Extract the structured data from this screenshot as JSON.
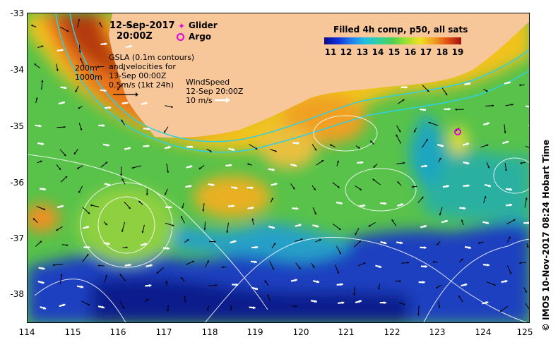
{
  "map": {
    "date": "12-Sep-2017",
    "time": "20:00Z",
    "legend_glider": "Glider",
    "legend_argo": "Argo",
    "gsla_note": "GSLA (0.1m contours)\nand velocities for\n13-Sep 00:00Z\n0.5m/s (1kt 24h)",
    "depth_200": "200m",
    "depth_1000": "1000m",
    "wind_note": "WindSpeed\n12-Sep 20:00Z\n10 m/s",
    "colorbar_title": "Filled 4h comp, p50, all sats",
    "colorbar_ticks": [
      "11",
      "12",
      "13",
      "14",
      "15",
      "16",
      "17",
      "18",
      "19"
    ],
    "credit": "© IMOS 10-Nov-2017 08:24 Hobart Time",
    "x_ticks": [
      "114",
      "115",
      "116",
      "117",
      "118",
      "119",
      "120",
      "121",
      "122",
      "123",
      "124",
      "125"
    ],
    "y_ticks": [
      "-33",
      "-34",
      "-35",
      "-36",
      "-37",
      "-38"
    ],
    "land_color": "#f7c79a",
    "argo_color": "#e000e0",
    "glider_color": "#e000e0"
  }
}
